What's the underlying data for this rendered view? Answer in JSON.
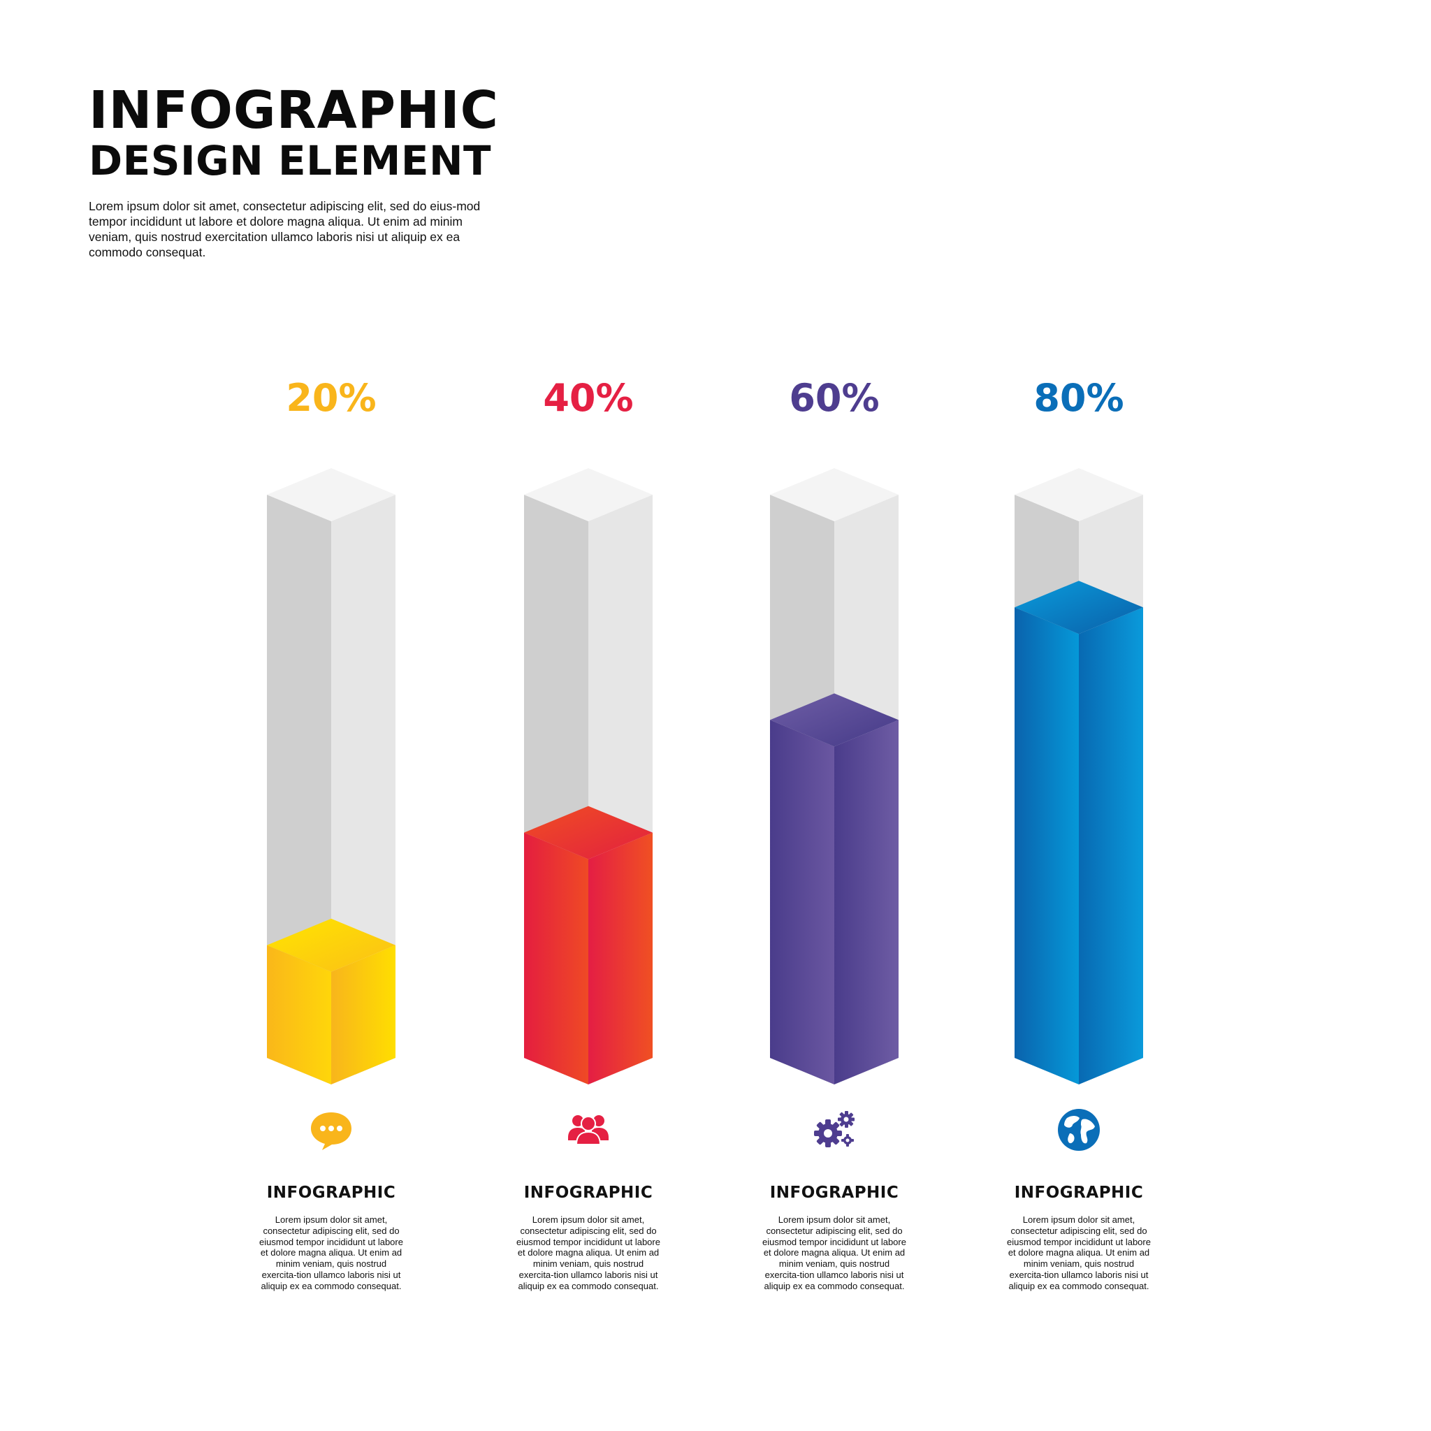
{
  "header": {
    "title_line1": "INFOGRAPHIC",
    "title_line2": "DESIGN ELEMENT",
    "intro": "Lorem ipsum dolor sit amet, consectetur adipiscing elit, sed do eius-mod tempor incididunt ut labore et dolore magna aliqua. Ut enim ad minim veniam, quis nostrud exercitation ullamco laboris nisi ut aliquip ex ea commodo consequat."
  },
  "chart_data": {
    "type": "bar",
    "categories": [
      "INFOGRAPHIC",
      "INFOGRAPHIC",
      "INFOGRAPHIC",
      "INFOGRAPHIC"
    ],
    "values": [
      20,
      40,
      60,
      80
    ],
    "value_labels": [
      "20%",
      "40%",
      "60%",
      "80%"
    ],
    "ylim": [
      0,
      100
    ],
    "grid": false,
    "colors": [
      "#F9B51B",
      "#E52043",
      "#4E3D8F",
      "#0A6EB8"
    ],
    "icons": [
      "chat-bubble-icon",
      "people-group-icon",
      "gears-icon",
      "globe-icon"
    ],
    "descriptions": [
      "Lorem ipsum dolor sit amet, consectetur adipiscing elit, sed do eiusmod tempor incididunt ut labore et dolore magna aliqua. Ut enim ad minim veniam, quis nostrud exercita-tion ullamco laboris nisi ut aliquip ex ea commodo consequat.",
      "Lorem ipsum dolor sit amet, consectetur adipiscing elit, sed do eiusmod tempor incididunt ut labore et dolore magna aliqua. Ut enim ad minim veniam, quis nostrud exercita-tion ullamco laboris nisi ut aliquip ex ea commodo consequat.",
      "Lorem ipsum dolor sit amet, consectetur adipiscing elit, sed do eiusmod tempor incididunt ut labore et dolore magna aliqua. Ut enim ad minim veniam, quis nostrud exercita-tion ullamco laboris nisi ut aliquip ex ea commodo consequat.",
      "Lorem ipsum dolor sit amet, consectetur adipiscing elit, sed do eiusmod tempor incididunt ut labore et dolore magna aliqua. Ut enim ad minim veniam, quis nostrud exercita-tion ullamco laboris nisi ut aliquip ex ea commodo consequat."
    ]
  }
}
